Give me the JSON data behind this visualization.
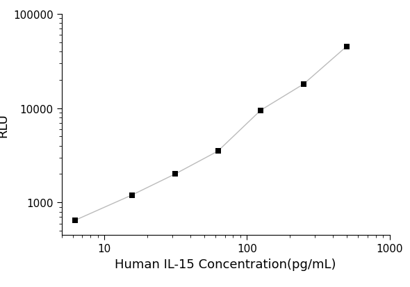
{
  "x": [
    6.25,
    15.6,
    31.25,
    62.5,
    125,
    250,
    500
  ],
  "y": [
    650,
    1200,
    2000,
    3500,
    9500,
    18000,
    45000
  ],
  "xlabel": "Human IL-15 Concentration(pg/mL)",
  "ylabel": "RLU",
  "xlim": [
    5,
    1000
  ],
  "ylim": [
    450,
    100000
  ],
  "marker": "s",
  "marker_color": "black",
  "marker_size": 6,
  "line_color": "#bbbbbb",
  "line_width": 1.0,
  "background_color": "#ffffff",
  "xlabel_fontsize": 13,
  "ylabel_fontsize": 13,
  "tick_fontsize": 11,
  "xticks": [
    10,
    100,
    1000
  ],
  "yticks": [
    1000,
    10000,
    100000
  ]
}
